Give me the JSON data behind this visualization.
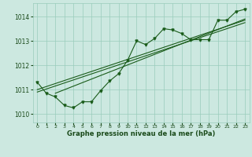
{
  "title": "Graphe pression niveau de la mer (hPa)",
  "background_color": "#cce8e0",
  "grid_color": "#99ccbb",
  "line_color": "#1a5c1a",
  "text_color": "#1a4a1a",
  "xlim": [
    -0.5,
    23.5
  ],
  "ylim": [
    1009.65,
    1014.55
  ],
  "yticks": [
    1010,
    1011,
    1012,
    1013,
    1014
  ],
  "xticks": [
    0,
    1,
    2,
    3,
    4,
    5,
    6,
    7,
    8,
    9,
    10,
    11,
    12,
    13,
    14,
    15,
    16,
    17,
    18,
    19,
    20,
    21,
    22,
    23
  ],
  "series1": [
    1011.3,
    1010.85,
    1010.7,
    1010.35,
    1010.25,
    1010.5,
    1010.5,
    1010.95,
    1011.35,
    1011.65,
    1012.2,
    1013.0,
    1012.85,
    1013.1,
    1013.5,
    1013.45,
    1013.3,
    1013.05,
    1013.05,
    1013.05,
    1013.85,
    1013.85,
    1014.2,
    1014.3
  ],
  "trend1_x": [
    0,
    23
  ],
  "trend1_y": [
    1010.9,
    1013.75
  ],
  "trend2_x": [
    0,
    23
  ],
  "trend2_y": [
    1011.0,
    1013.85
  ],
  "trend3_x": [
    2,
    23
  ],
  "trend3_y": [
    1010.85,
    1013.9
  ]
}
